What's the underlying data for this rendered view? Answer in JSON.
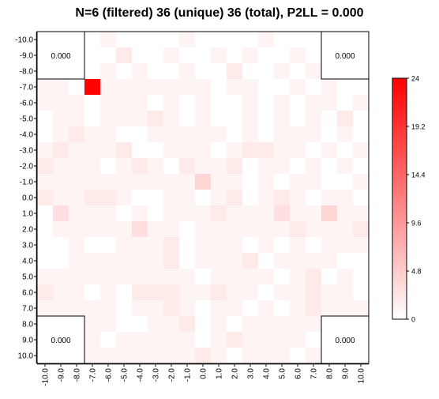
{
  "chart_data": {
    "type": "heatmap",
    "title": "N=6 (filtered) 36 (unique) 36 (total), P2LL = 0.000",
    "x_ticks": [
      "-10.0",
      "-9.0",
      "-8.0",
      "-7.0",
      "-6.0",
      "-5.0",
      "-4.0",
      "-3.0",
      "-2.0",
      "-1.0",
      "0.0",
      "1.0",
      "2.0",
      "3.0",
      "4.0",
      "5.0",
      "6.0",
      "7.0",
      "8.0",
      "9.0",
      "10.0"
    ],
    "y_ticks": [
      "-10.0",
      "-9.0",
      "-8.0",
      "-7.0",
      "-6.0",
      "-5.0",
      "-4.0",
      "-3.0",
      "-2.0",
      "-1.0",
      "0.0",
      "1.0",
      "2.0",
      "3.0",
      "4.0",
      "5.0",
      "6.0",
      "7.0",
      "8.0",
      "9.0",
      "10.0"
    ],
    "x_range": [
      -10,
      10
    ],
    "y_range": [
      -10,
      10
    ],
    "y_direction": "top-to-bottom increasing",
    "corner_labels": {
      "top_left": "0.000",
      "top_right": "0.000",
      "bottom_left": "0.000",
      "bottom_right": "0.000"
    },
    "corner_region_size_cells": 3,
    "colorbar": {
      "ticks": [
        "24",
        "19.2",
        "14.4",
        "9.6",
        "4.8",
        "0"
      ],
      "min": 0,
      "max": 24,
      "color_low": "#ffffff",
      "color_high": "#ff0000"
    },
    "values": [
      [
        0,
        1,
        0,
        0,
        1,
        0,
        0,
        0,
        0,
        1,
        0,
        0,
        0,
        0,
        1,
        0,
        0,
        0,
        0,
        1,
        0
      ],
      [
        0,
        0,
        1,
        0,
        0,
        2,
        0,
        0,
        1,
        0,
        0,
        1,
        0,
        1,
        0,
        0,
        1,
        0,
        0,
        0,
        0
      ],
      [
        0,
        0,
        0,
        0,
        1,
        0,
        1,
        0,
        0,
        1,
        0,
        0,
        2,
        0,
        0,
        1,
        0,
        1,
        0,
        0,
        0
      ],
      [
        1,
        1,
        0,
        24,
        1,
        1,
        1,
        1,
        1,
        1,
        1,
        0,
        1,
        1,
        0,
        0,
        1,
        0,
        1,
        0,
        0
      ],
      [
        1,
        1,
        1,
        0,
        1,
        1,
        1,
        0,
        1,
        0,
        1,
        0,
        0,
        1,
        0,
        1,
        0,
        1,
        1,
        0,
        1
      ],
      [
        0,
        1,
        1,
        0,
        1,
        1,
        1,
        2,
        1,
        0,
        1,
        0,
        0,
        1,
        0,
        1,
        0,
        1,
        0,
        2,
        0
      ],
      [
        0,
        1,
        2,
        1,
        1,
        0,
        0,
        1,
        1,
        1,
        1,
        1,
        0,
        1,
        0,
        1,
        1,
        1,
        0,
        1,
        0
      ],
      [
        1,
        2,
        1,
        1,
        1,
        2,
        0,
        0,
        1,
        1,
        1,
        0,
        1,
        2,
        2,
        1,
        1,
        0,
        1,
        0,
        1
      ],
      [
        2,
        1,
        1,
        1,
        0,
        1,
        2,
        1,
        0,
        2,
        1,
        1,
        2,
        0,
        1,
        1,
        0,
        1,
        0,
        1,
        0
      ],
      [
        1,
        1,
        1,
        1,
        1,
        1,
        1,
        1,
        1,
        1,
        4,
        1,
        1,
        0,
        1,
        0,
        1,
        1,
        0,
        0,
        1
      ],
      [
        2,
        1,
        1,
        2,
        2,
        1,
        0,
        0,
        1,
        1,
        0,
        1,
        2,
        0,
        1,
        2,
        1,
        0,
        1,
        1,
        0
      ],
      [
        0,
        3,
        1,
        1,
        1,
        0,
        1,
        0,
        1,
        1,
        1,
        2,
        1,
        1,
        1,
        3,
        1,
        1,
        4,
        1,
        1
      ],
      [
        0,
        1,
        1,
        1,
        1,
        1,
        3,
        1,
        1,
        0,
        1,
        1,
        1,
        1,
        1,
        1,
        2,
        1,
        1,
        1,
        2
      ],
      [
        0,
        0,
        1,
        0,
        0,
        1,
        1,
        1,
        2,
        0,
        1,
        1,
        1,
        0,
        1,
        0,
        1,
        0,
        1,
        1,
        1
      ],
      [
        0,
        0,
        1,
        1,
        1,
        1,
        1,
        1,
        2,
        0,
        1,
        1,
        1,
        2,
        0,
        1,
        1,
        1,
        1,
        0,
        0
      ],
      [
        1,
        1,
        1,
        1,
        1,
        1,
        1,
        1,
        1,
        1,
        0,
        1,
        1,
        1,
        1,
        0,
        1,
        2,
        0,
        1,
        0
      ],
      [
        2,
        1,
        1,
        0,
        1,
        0,
        2,
        2,
        2,
        1,
        1,
        2,
        1,
        1,
        0,
        1,
        1,
        2,
        1,
        1,
        0
      ],
      [
        1,
        1,
        1,
        1,
        1,
        0,
        1,
        1,
        2,
        1,
        0,
        1,
        1,
        0,
        1,
        0,
        1,
        2,
        1,
        1,
        1
      ],
      [
        0,
        0,
        1,
        1,
        1,
        0,
        0,
        1,
        1,
        2,
        0,
        1,
        0,
        1,
        1,
        1,
        1,
        1,
        0,
        0,
        0
      ],
      [
        1,
        1,
        1,
        1,
        0,
        1,
        1,
        1,
        1,
        1,
        0,
        1,
        2,
        1,
        1,
        1,
        1,
        0,
        0,
        0,
        0
      ],
      [
        1,
        1,
        1,
        1,
        1,
        1,
        1,
        1,
        1,
        1,
        2,
        1,
        0,
        1,
        1,
        1,
        0,
        1,
        0,
        0,
        0
      ]
    ]
  }
}
